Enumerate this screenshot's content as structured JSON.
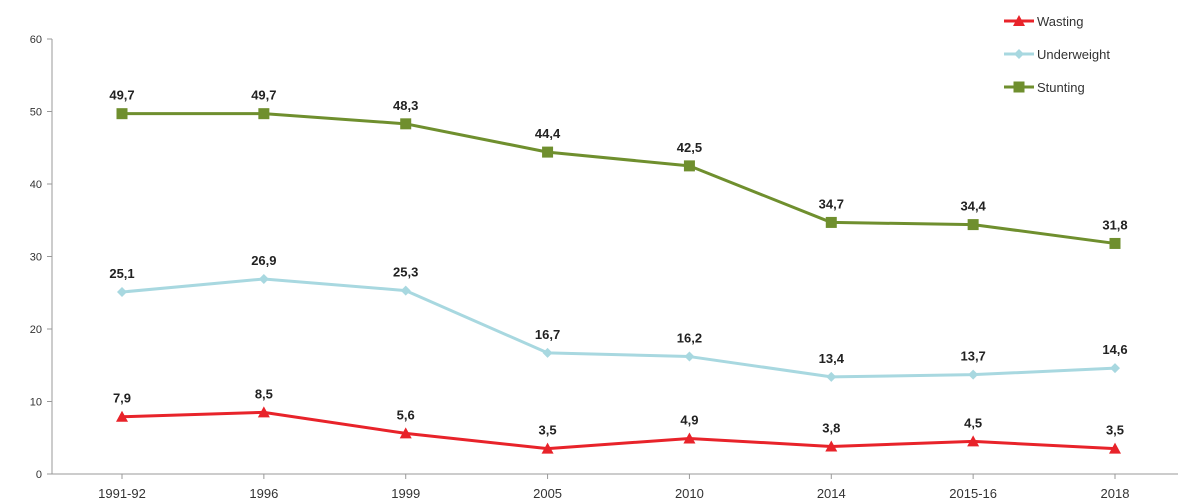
{
  "chart_data": {
    "type": "line",
    "title": "",
    "xlabel": "",
    "ylabel": "",
    "categories": [
      "1991-92",
      "1996",
      "1999",
      "2005",
      "2010",
      "2014",
      "2015-16",
      "2018"
    ],
    "ylim": [
      0,
      60
    ],
    "yticks": [
      0,
      10,
      20,
      30,
      40,
      50,
      60
    ],
    "grid": false,
    "legend_position": "top-right",
    "series": [
      {
        "name": "Wasting",
        "color": "#e8232a",
        "marker": "triangle",
        "values": [
          7.9,
          8.5,
          5.6,
          3.5,
          4.9,
          3.8,
          4.5,
          3.5
        ],
        "labels": [
          "7,9",
          "8,5",
          "5,6",
          "3,5",
          "4,9",
          "3,8",
          "4,5",
          "3,5"
        ]
      },
      {
        "name": "Underweight",
        "color": "#a8d8e0",
        "marker": "diamond",
        "values": [
          25.1,
          26.9,
          25.3,
          16.7,
          16.2,
          13.4,
          13.7,
          14.6
        ],
        "labels": [
          "25,1",
          "26,9",
          "25,3",
          "16,7",
          "16,2",
          "13,4",
          "13,7",
          "14,6"
        ]
      },
      {
        "name": "Stunting",
        "color": "#6f8f2e",
        "marker": "square",
        "values": [
          49.7,
          49.7,
          48.3,
          44.4,
          42.5,
          34.7,
          34.4,
          31.8
        ],
        "labels": [
          "49,7",
          "49,7",
          "48,3",
          "44,4",
          "42,5",
          "34,7",
          "34,4",
          "31,8"
        ]
      }
    ]
  }
}
